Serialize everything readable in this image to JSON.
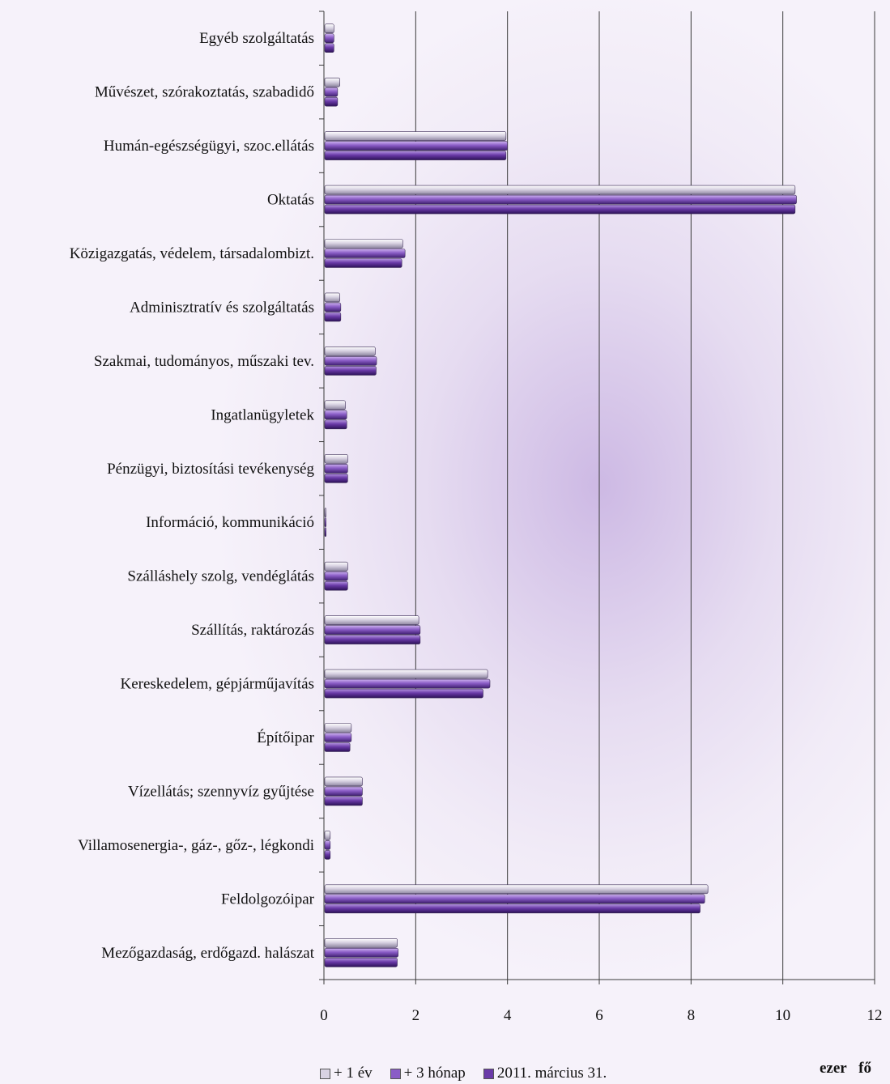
{
  "chart_data": {
    "type": "bar",
    "orientation": "horizontal",
    "categories": [
      "Egyéb szolgáltatás",
      "Művészet, szórakoztatás, szabadidő",
      "Humán-egészségügyi, szoc.ellátás",
      "Oktatás",
      "Közigazgatás, védelem, társadalombizt.",
      "Adminisztratív és szolgáltatás",
      "Szakmai, tudományos, műszaki tev.",
      "Ingatlanügyletek",
      "Pénzügyi, biztosítási tevékenység",
      "Információ, kommunikáció",
      "Szálláshely szolg,  vendéglátás",
      "Szállítás, raktározás",
      "Kereskedelem, gépjárműjavítás",
      "Építőipar",
      "Vízellátás; szennyvíz gyűjtése",
      "Villamosenergia-, gáz-, gőz-, légkondi",
      "Feldolgozóipar",
      "Mezőgazdaság, erdőgazd. halászat"
    ],
    "series": [
      {
        "name": "+ 1 év",
        "color": "#d8d2e2",
        "values": [
          0.2,
          0.33,
          3.95,
          10.25,
          1.7,
          0.33,
          1.1,
          0.45,
          0.5,
          0.03,
          0.5,
          2.05,
          3.55,
          0.58,
          0.82,
          0.12,
          8.35,
          1.58
        ]
      },
      {
        "name": "+ 3 hónap",
        "color": "#8a5cc6",
        "values": [
          0.2,
          0.28,
          3.98,
          10.28,
          1.75,
          0.35,
          1.13,
          0.48,
          0.5,
          0.03,
          0.5,
          2.08,
          3.6,
          0.58,
          0.82,
          0.12,
          8.28,
          1.6
        ]
      },
      {
        "name": "2011. március 31.",
        "color": "#6a3aa8",
        "values": [
          0.2,
          0.28,
          3.95,
          10.25,
          1.68,
          0.35,
          1.12,
          0.48,
          0.5,
          0.03,
          0.5,
          2.08,
          3.45,
          0.55,
          0.82,
          0.12,
          8.18,
          1.58
        ]
      }
    ],
    "xlim": [
      0,
      12
    ],
    "xticks": [
      "0",
      "2",
      "4",
      "6",
      "8",
      "10",
      "12"
    ],
    "unit": "ezer fő",
    "grid": true,
    "legend_position": "bottom"
  },
  "legend": {
    "items": [
      "+ 1 év",
      "+ 3 hónap",
      "2011. március 31."
    ]
  },
  "unit_label": "ezer   fő"
}
